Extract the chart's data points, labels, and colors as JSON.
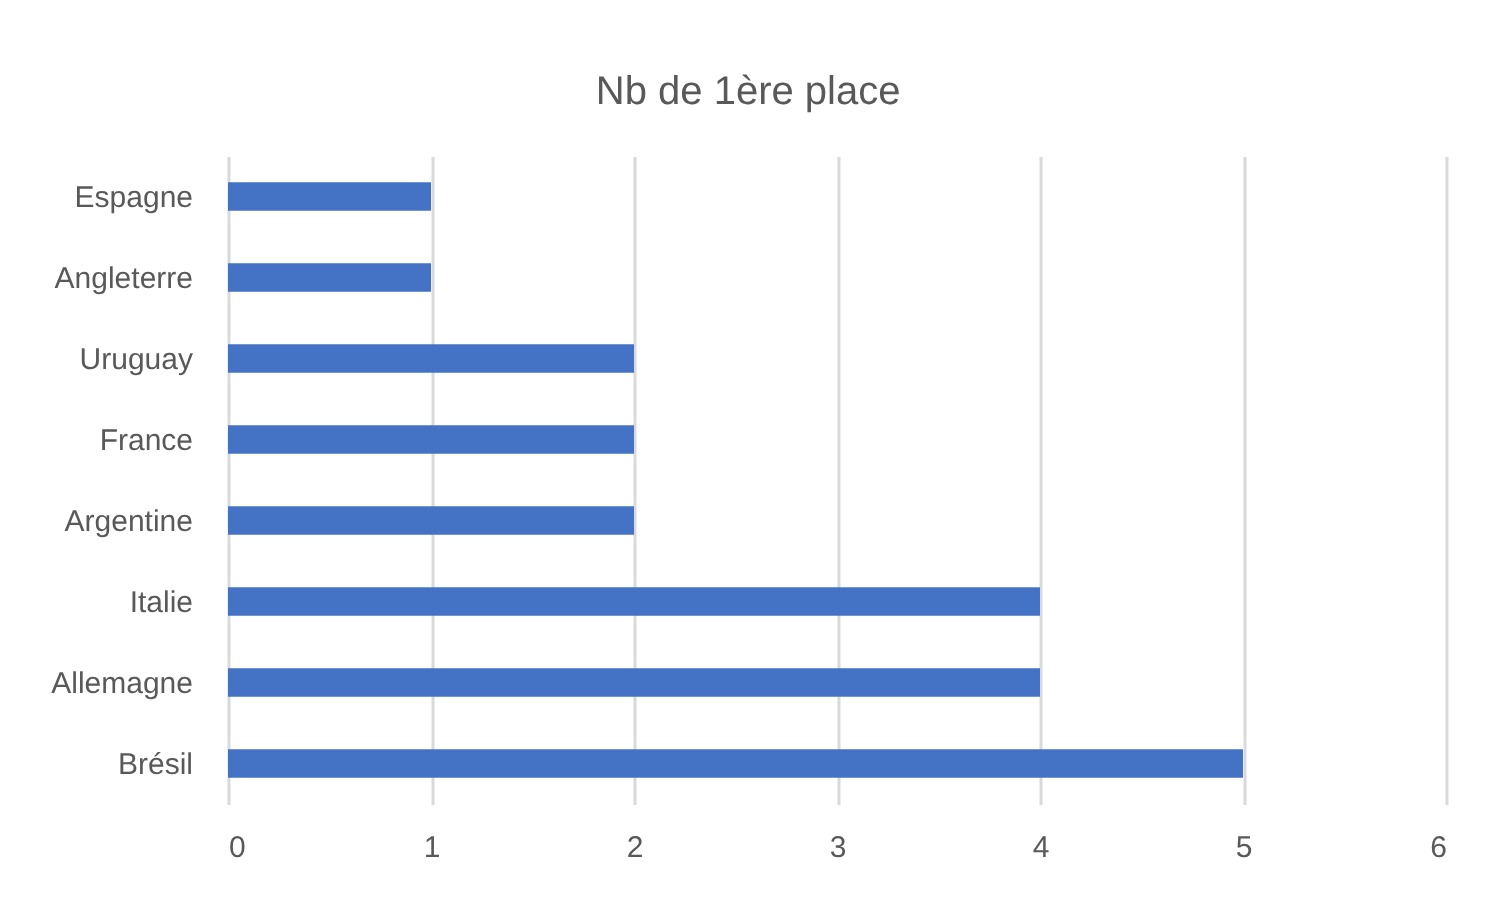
{
  "chart_data": {
    "type": "bar",
    "orientation": "horizontal",
    "title": "Nb de 1ère place",
    "categories": [
      "Espagne",
      "Angleterre",
      "Uruguay",
      "France",
      "Argentine",
      "Italie",
      "Allemagne",
      "Brésil"
    ],
    "values": [
      1,
      1,
      2,
      2,
      2,
      4,
      4,
      5
    ],
    "color": "#4472c4",
    "xlim": [
      0,
      6
    ],
    "xticks": [
      0,
      1,
      2,
      3,
      4,
      5,
      6
    ],
    "grid": "x"
  }
}
